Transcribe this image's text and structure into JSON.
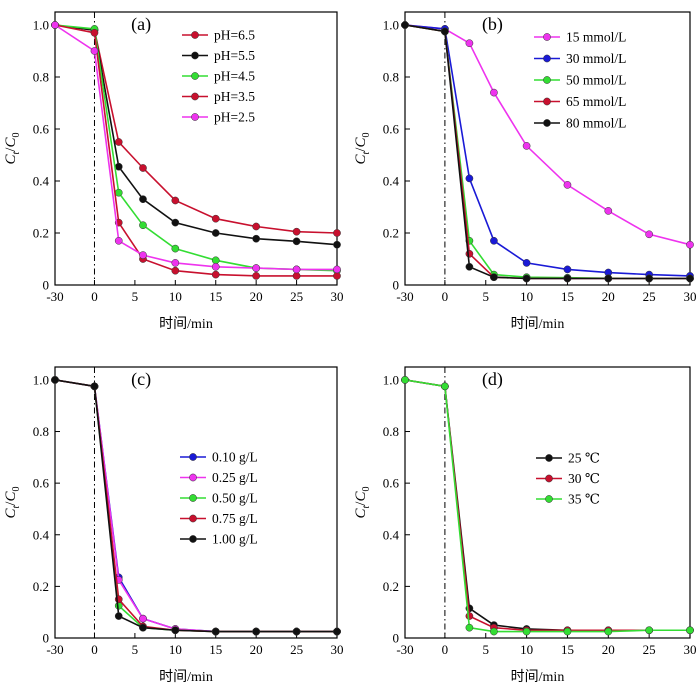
{
  "chart_data": [
    {
      "type": "line",
      "panel_label": "(a)",
      "xlabel": "时间/min",
      "ylabel": {
        "C": "C",
        "t": "t",
        "slash": "/",
        "C0": "C",
        "zero": "0"
      },
      "x": [
        -30,
        0,
        3,
        6,
        10,
        15,
        20,
        25,
        30
      ],
      "xlim": [
        -30,
        30
      ],
      "ylim": [
        0,
        1.05
      ],
      "xticks": [
        "-30",
        "0",
        "5",
        "10",
        "15",
        "20",
        "25",
        "30"
      ],
      "yticks": [
        "0",
        "0.2",
        "0.4",
        "0.6",
        "0.8",
        "1.0"
      ],
      "legend_position": "top-right",
      "series": [
        {
          "name": "pH=6.5",
          "color": "#c8102e",
          "values": [
            1.0,
            0.98,
            0.55,
            0.45,
            0.325,
            0.255,
            0.225,
            0.205,
            0.2
          ]
        },
        {
          "name": "pH=5.5",
          "color": "#111111",
          "values": [
            1.0,
            0.98,
            0.455,
            0.33,
            0.24,
            0.2,
            0.178,
            0.168,
            0.155
          ]
        },
        {
          "name": "pH=4.5",
          "color": "#33dd33",
          "values": [
            1.0,
            0.985,
            0.355,
            0.23,
            0.14,
            0.095,
            0.065,
            0.06,
            0.055
          ]
        },
        {
          "name": "pH=3.5",
          "color": "#c8102e",
          "values": [
            1.0,
            0.97,
            0.24,
            0.1,
            0.055,
            0.04,
            0.035,
            0.035,
            0.035
          ]
        },
        {
          "name": "pH=2.5",
          "color": "#ee33ee",
          "values": [
            1.0,
            0.9,
            0.17,
            0.115,
            0.085,
            0.07,
            0.065,
            0.06,
            0.06
          ]
        }
      ]
    },
    {
      "type": "line",
      "panel_label": "(b)",
      "xlabel": "时间/min",
      "ylabel": {
        "C": "C",
        "t": "t",
        "slash": "/",
        "C0": "C",
        "zero": "0"
      },
      "x": [
        -30,
        0,
        3,
        6,
        10,
        15,
        20,
        25,
        30
      ],
      "xlim": [
        -30,
        30
      ],
      "ylim": [
        0,
        1.05
      ],
      "xticks": [
        "-30",
        "0",
        "5",
        "10",
        "15",
        "20",
        "25",
        "30"
      ],
      "yticks": [
        "0",
        "0.2",
        "0.4",
        "0.6",
        "0.8",
        "1.0"
      ],
      "legend_position": "top-right",
      "series": [
        {
          "name": "15 mmol/L",
          "color": "#ee33ee",
          "values": [
            1.0,
            0.985,
            0.93,
            0.74,
            0.535,
            0.385,
            0.285,
            0.195,
            0.155
          ]
        },
        {
          "name": "30 mmol/L",
          "color": "#1a1ad6",
          "values": [
            1.0,
            0.985,
            0.41,
            0.17,
            0.085,
            0.06,
            0.048,
            0.04,
            0.035
          ]
        },
        {
          "name": "50 mmol/L",
          "color": "#33dd33",
          "values": [
            1.0,
            0.975,
            0.17,
            0.04,
            0.03,
            0.028,
            0.026,
            0.025,
            0.025
          ]
        },
        {
          "name": "65 mmol/L",
          "color": "#c8102e",
          "values": [
            1.0,
            0.975,
            0.12,
            0.03,
            0.025,
            0.025,
            0.025,
            0.025,
            0.025
          ]
        },
        {
          "name": "80 mmol/L",
          "color": "#111111",
          "values": [
            1.0,
            0.975,
            0.07,
            0.03,
            0.025,
            0.025,
            0.025,
            0.025,
            0.025
          ]
        }
      ]
    },
    {
      "type": "line",
      "panel_label": "(c)",
      "xlabel": "时间/min",
      "ylabel": {
        "C": "C",
        "t": "t",
        "slash": "/",
        "C0": "C",
        "zero": "0"
      },
      "x": [
        -30,
        0,
        3,
        6,
        10,
        15,
        20,
        25,
        30
      ],
      "xlim": [
        -30,
        30
      ],
      "ylim": [
        0,
        1.05
      ],
      "xticks": [
        "-30",
        "0",
        "5",
        "10",
        "15",
        "20",
        "25",
        "30"
      ],
      "yticks": [
        "0",
        "0.2",
        "0.4",
        "0.6",
        "0.8",
        "1.0"
      ],
      "legend_position": "center-right",
      "series": [
        {
          "name": "0.10 g/L",
          "color": "#1a1ad6",
          "values": [
            1.0,
            0.975,
            0.235,
            0.075,
            0.035,
            0.025,
            0.025,
            0.025,
            0.025
          ]
        },
        {
          "name": "0.25 g/L",
          "color": "#ee33ee",
          "values": [
            1.0,
            0.975,
            0.225,
            0.075,
            0.035,
            0.025,
            0.025,
            0.025,
            0.025
          ]
        },
        {
          "name": "0.50 g/L",
          "color": "#33dd33",
          "values": [
            1.0,
            0.975,
            0.125,
            0.04,
            0.03,
            0.025,
            0.025,
            0.025,
            0.025
          ]
        },
        {
          "name": "0.75 g/L",
          "color": "#c8102e",
          "values": [
            1.0,
            0.975,
            0.15,
            0.045,
            0.03,
            0.025,
            0.025,
            0.025,
            0.025
          ]
        },
        {
          "name": "1.00 g/L",
          "color": "#111111",
          "values": [
            1.0,
            0.975,
            0.085,
            0.04,
            0.03,
            0.025,
            0.025,
            0.025,
            0.025
          ]
        }
      ]
    },
    {
      "type": "line",
      "panel_label": "(d)",
      "xlabel": "时间/min",
      "ylabel": {
        "C": "C",
        "t": "t",
        "slash": "/",
        "C0": "C",
        "zero": "0"
      },
      "x": [
        -30,
        0,
        3,
        6,
        10,
        15,
        20,
        25,
        30
      ],
      "xlim": [
        -30,
        30
      ],
      "ylim": [
        0,
        1.05
      ],
      "xticks": [
        "-30",
        "0",
        "5",
        "10",
        "15",
        "20",
        "25",
        "30"
      ],
      "yticks": [
        "0",
        "0.2",
        "0.4",
        "0.6",
        "0.8",
        "1.0"
      ],
      "legend_position": "center",
      "series": [
        {
          "name": "25 ℃",
          "color": "#111111",
          "values": [
            1.0,
            0.975,
            0.115,
            0.05,
            0.035,
            0.03,
            0.03,
            0.03,
            0.03
          ]
        },
        {
          "name": "30 ℃",
          "color": "#c8102e",
          "values": [
            1.0,
            0.975,
            0.085,
            0.04,
            0.03,
            0.03,
            0.03,
            0.03,
            0.03
          ]
        },
        {
          "name": "35 ℃",
          "color": "#33dd33",
          "values": [
            1.0,
            0.975,
            0.04,
            0.025,
            0.025,
            0.025,
            0.025,
            0.03,
            0.03
          ]
        }
      ]
    }
  ]
}
